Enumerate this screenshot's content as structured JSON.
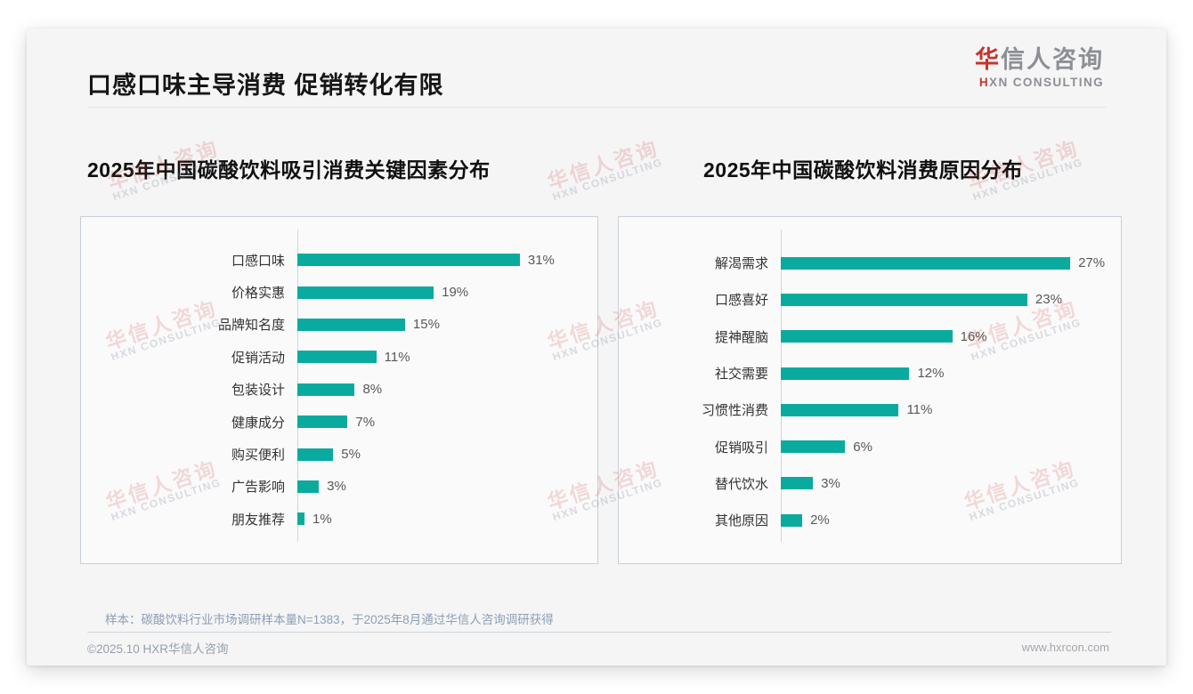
{
  "page": {
    "title": "口感口味主导消费 促销转化有限",
    "logo": {
      "cn_first": "华",
      "cn_rest": "信人咨询",
      "en_first": "H",
      "en_rest": "XN CONSULTING"
    },
    "footnote": "样本：碳酸饮料行业市场调研样本量N=1383，于2025年8月通过华信人咨询调研获得",
    "footer_left": "©2025.10 HXR华信人咨询",
    "footer_right": "www.hxrcon.com",
    "watermark": {
      "line1": "华信人咨询",
      "line2": "HXN CONSULTING"
    }
  },
  "colors": {
    "bar": "#0aab9e",
    "accent_red": "#c5342f"
  },
  "chart_data": [
    {
      "type": "bar",
      "orientation": "horizontal",
      "title": "2025年中国碳酸饮料吸引消费关键因素分布",
      "categories": [
        "口感口味",
        "价格实惠",
        "品牌知名度",
        "促销活动",
        "包装设计",
        "健康成分",
        "购买便利",
        "广告影响",
        "朋友推荐"
      ],
      "values": [
        31,
        19,
        15,
        11,
        8,
        7,
        5,
        3,
        1
      ],
      "unit": "%",
      "xlim": [
        0,
        35
      ],
      "grid": false,
      "legend": "none",
      "value_labels": "outside-end"
    },
    {
      "type": "bar",
      "orientation": "horizontal",
      "title": "2025年中国碳酸饮料消费原因分布",
      "categories": [
        "解渴需求",
        "口感喜好",
        "提神醒脑",
        "社交需要",
        "习惯性消费",
        "促销吸引",
        "替代饮水",
        "其他原因"
      ],
      "values": [
        27,
        23,
        16,
        12,
        11,
        6,
        3,
        2
      ],
      "unit": "%",
      "xlim": [
        0,
        30
      ],
      "grid": false,
      "legend": "none",
      "value_labels": "outside-end"
    }
  ]
}
